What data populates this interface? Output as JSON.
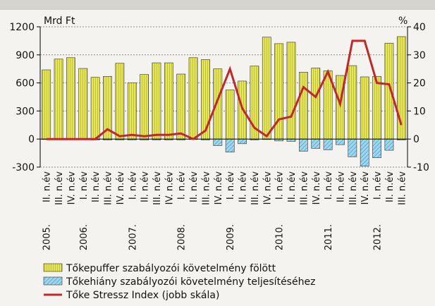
{
  "chart_data": {
    "type": "bar_line",
    "y_label": "Mrd Ft",
    "y2_label": "%",
    "categories": [
      "II. n.év",
      "III. n.év",
      "IV. n.év",
      "I. n.év",
      "II. n.év",
      "III. n.év",
      "IV. n.év",
      "I. n.év",
      "II. n.év",
      "III. n.év",
      "IV. n.év",
      "I. n.év",
      "II. n.év",
      "III. n.év",
      "IV. n.év",
      "I. n.év",
      "II. n.év",
      "III. n.év",
      "IV. n.év",
      "I. n.év",
      "II. n.év",
      "III. n.év",
      "IV. n.év",
      "I. n.év",
      "II. n.év",
      "III. n.év",
      "IV. n.év",
      "I. n.év",
      "II. n.év",
      "III. n.év"
    ],
    "years": [
      "2005.",
      "2006.",
      "2007.",
      "2008.",
      "2009.",
      "2010.",
      "2011.",
      "2012."
    ],
    "series": [
      {
        "name": "Tőkepuffer szabályozói követelmény fölött",
        "color": "#e6e65a",
        "kind": "bar",
        "values": [
          740,
          855,
          870,
          755,
          660,
          670,
          810,
          600,
          690,
          815,
          815,
          695,
          870,
          850,
          750,
          525,
          620,
          780,
          1090,
          1020,
          1035,
          715,
          760,
          730,
          680,
          785,
          665,
          670,
          1025,
          1095
        ]
      },
      {
        "name": "Tőkehiány szabályozói követelmény teljesítéséhez",
        "color": "#9fd6ee",
        "kind": "bar",
        "values": [
          -5,
          -5,
          -5,
          -5,
          -10,
          -10,
          -10,
          -10,
          -10,
          -10,
          -10,
          -10,
          -5,
          -10,
          -70,
          -140,
          -50,
          -10,
          -5,
          -20,
          -25,
          -130,
          -100,
          -115,
          -60,
          -190,
          -290,
          -200,
          -120,
          -10
        ]
      },
      {
        "name": "Tőke Stressz Index (jobb skála)",
        "color": "#c0282a",
        "kind": "line",
        "axis": "y2",
        "values": [
          0,
          0,
          0,
          0,
          0,
          3.5,
          1,
          1.5,
          1,
          1.5,
          1.5,
          2,
          0,
          3,
          14,
          25,
          11,
          4,
          1,
          7,
          8,
          18.5,
          15,
          24,
          12.5,
          35,
          35,
          20,
          19.5,
          5
        ]
      }
    ],
    "ylim": [
      -300,
      1200
    ],
    "yticks": [
      -300,
      0,
      300,
      600,
      900,
      1200
    ],
    "y2lim": [
      -10,
      40
    ],
    "y2ticks": [
      -10,
      0,
      10,
      20,
      30,
      40
    ],
    "grid": true
  }
}
